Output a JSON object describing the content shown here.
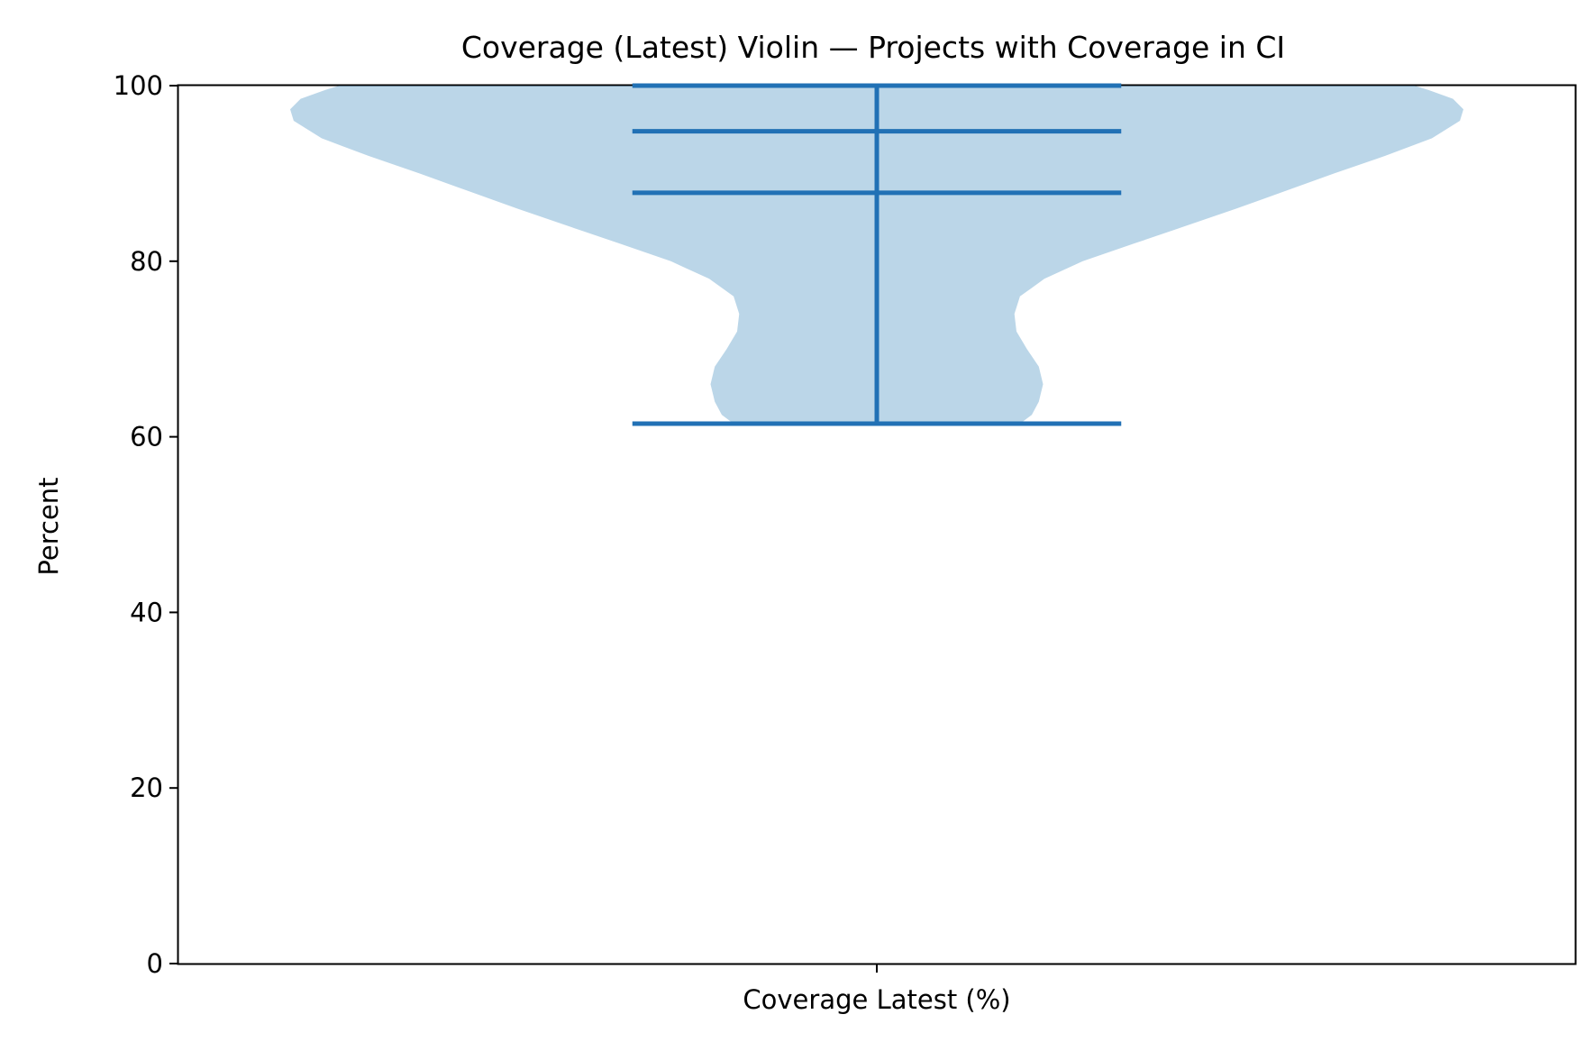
{
  "chart_data": {
    "type": "violin",
    "title": "Coverage (Latest) Violin — Projects with Coverage in CI",
    "xlabel": "",
    "ylabel": "Percent",
    "categories": [
      "Coverage Latest (%)"
    ],
    "ylim": [
      0,
      100
    ],
    "yticks": [
      0,
      20,
      40,
      60,
      80,
      100
    ],
    "grid": false,
    "stats": {
      "min": 61.5,
      "median": 87.8,
      "mean": 94.8,
      "max": 100
    },
    "density_profile": {
      "y": [
        61.5,
        62.5,
        64,
        66,
        68,
        70,
        72,
        74,
        76,
        78,
        80,
        82,
        84,
        86,
        88,
        90,
        92,
        94,
        96,
        97.3,
        98.5,
        99.5,
        100
      ],
      "half_width": [
        0.205,
        0.222,
        0.232,
        0.238,
        0.232,
        0.215,
        0.2,
        0.197,
        0.205,
        0.24,
        0.295,
        0.368,
        0.442,
        0.515,
        0.585,
        0.655,
        0.728,
        0.795,
        0.835,
        0.84,
        0.825,
        0.79,
        0.77
      ]
    },
    "colors": {
      "body": "#1f77b4",
      "lines": "#2171b5"
    }
  }
}
